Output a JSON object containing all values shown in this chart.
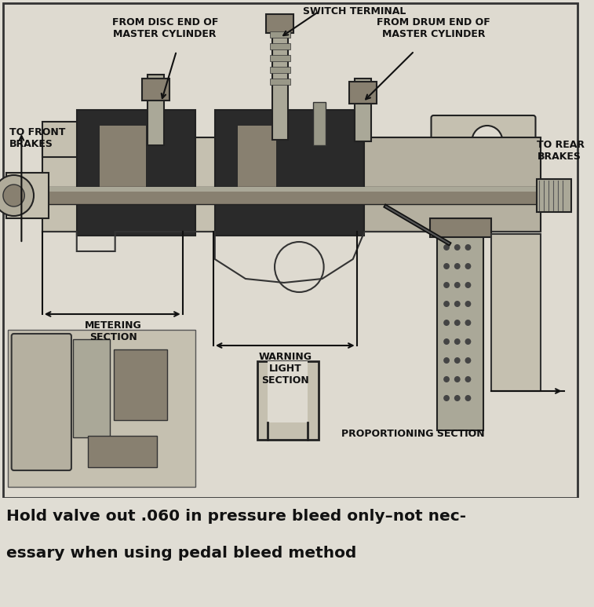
{
  "bg_color": "#e0ddd4",
  "diagram_bg": "#dedad0",
  "border_color": "#222222",
  "text_color": "#111111",
  "caption_color": "#111111",
  "figsize": [
    7.57,
    7.73
  ],
  "dpi": 100,
  "labels": {
    "switch_terminal": "SWITCH TERMINAL",
    "from_disc": "FROM DISC END OF\nMASTER CYLINDER",
    "from_drum": "FROM DRUM END OF\nMASTER CYLINDER",
    "to_front": "TO FRONT\nBRAKES",
    "to_rear": "TO REAR\nBRAKES",
    "metering": "METERING\nSECTION",
    "warning_light": "WARNING\nLIGHT\nSECTION",
    "proportioning": "PROPORTIONING SECTION"
  },
  "caption_line1": "Hold valve out .060 in pressure bleed only–not nec-",
  "caption_line2": "essary when using pedal bleed method"
}
